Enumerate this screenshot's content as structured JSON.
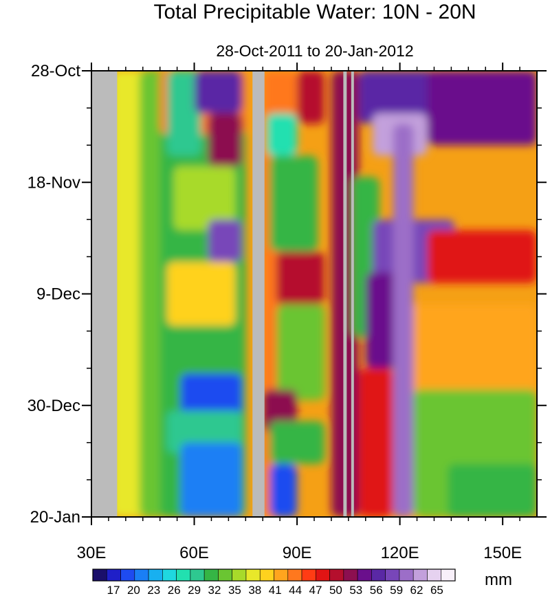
{
  "chart_data": {
    "type": "heatmap",
    "title": "Total Precipitable Water: 10N - 20N",
    "subtitle": "28-Oct-2011 to 20-Jan-2012",
    "x_ticks": [
      {
        "value": 30,
        "label": "30E"
      },
      {
        "value": 60,
        "label": "60E"
      },
      {
        "value": 90,
        "label": "90E"
      },
      {
        "value": 120,
        "label": "120E"
      },
      {
        "value": 150,
        "label": "150E"
      }
    ],
    "y_ticks": [
      {
        "value": 0,
        "label": "28-Oct"
      },
      {
        "value": 21,
        "label": "18-Nov"
      },
      {
        "value": 42,
        "label": "9-Dec"
      },
      {
        "value": 63,
        "label": "30-Dec"
      },
      {
        "value": 84,
        "label": "20-Jan"
      }
    ],
    "xlim": [
      30,
      160
    ],
    "ylim_days": [
      0,
      84
    ],
    "colorbar": {
      "unit": "mm",
      "labels": [
        "17",
        "20",
        "23",
        "26",
        "29",
        "32",
        "35",
        "38",
        "41",
        "44",
        "47",
        "50",
        "53",
        "56",
        "59",
        "62",
        "65"
      ],
      "colors": [
        "#1a0f6b",
        "#1f1fc8",
        "#1e4bf0",
        "#1a7ff5",
        "#18b0f0",
        "#1fd8e0",
        "#22e0b0",
        "#2ec890",
        "#35b545",
        "#6ac532",
        "#a8da2a",
        "#e8e82a",
        "#ffd21e",
        "#ffa51e",
        "#ff781e",
        "#ff3c14",
        "#e01414",
        "#b50f2d",
        "#8c0f50",
        "#6a0f8c",
        "#5a28a5",
        "#7846b9",
        "#9c6ec8",
        "#c3a0dc",
        "#e6d2f0",
        "#f8f0fa"
      ]
    },
    "regions": [
      {
        "lon": [
          40,
          44
        ],
        "tpw": 36,
        "note": "narrow band"
      },
      {
        "lon": [
          50,
          72
        ],
        "tpw": 30
      },
      {
        "lon": [
          60,
          72
        ],
        "days": [
          60,
          84
        ],
        "tpw": 18
      },
      {
        "lon": [
          75,
          80
        ],
        "tpw": "missing"
      },
      {
        "lon": [
          85,
          97
        ],
        "tpw": 38
      },
      {
        "lon": [
          100,
          110
        ],
        "tpw": 50
      },
      {
        "lon": [
          110,
          160
        ],
        "days": [
          0,
          10
        ],
        "tpw": 55
      },
      {
        "lon": [
          115,
          160
        ],
        "days": [
          40,
          84
        ],
        "tpw": 42
      }
    ]
  }
}
